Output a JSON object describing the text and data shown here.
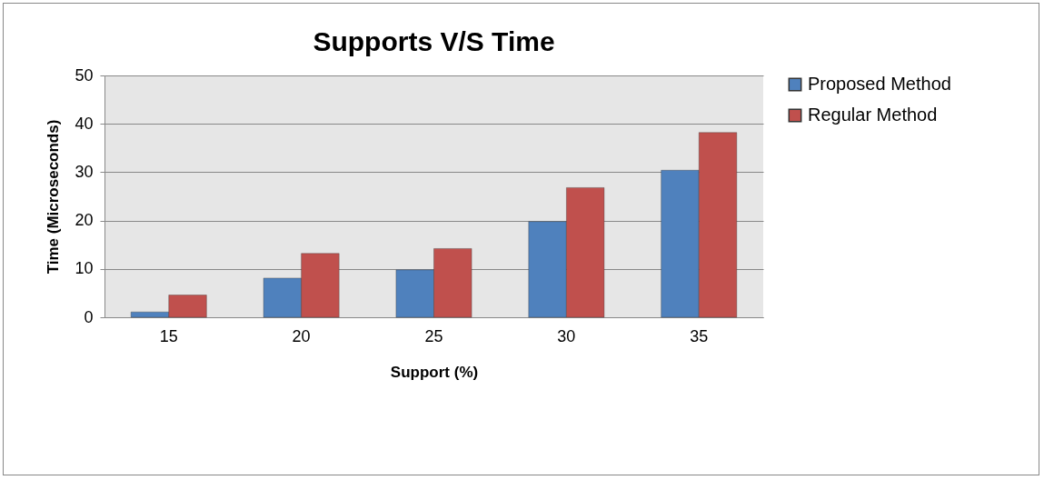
{
  "chart_data": {
    "type": "bar",
    "title": "Supports V/S Time",
    "xlabel": "Support (%)",
    "ylabel": "Time (Microseconds)",
    "categories": [
      "15",
      "20",
      "25",
      "30",
      "35"
    ],
    "series": [
      {
        "name": "Proposed Method",
        "color": "#4f81bd",
        "values": [
          1.1,
          8.1,
          9.8,
          19.8,
          30.4
        ]
      },
      {
        "name": "Regular Method",
        "color": "#c0504d",
        "values": [
          4.6,
          13.2,
          14.2,
          26.8,
          38.2
        ]
      }
    ],
    "ylim": [
      0,
      50
    ],
    "yticks": [
      0,
      10,
      20,
      30,
      40,
      50
    ],
    "grid": "y",
    "legend": "right"
  }
}
